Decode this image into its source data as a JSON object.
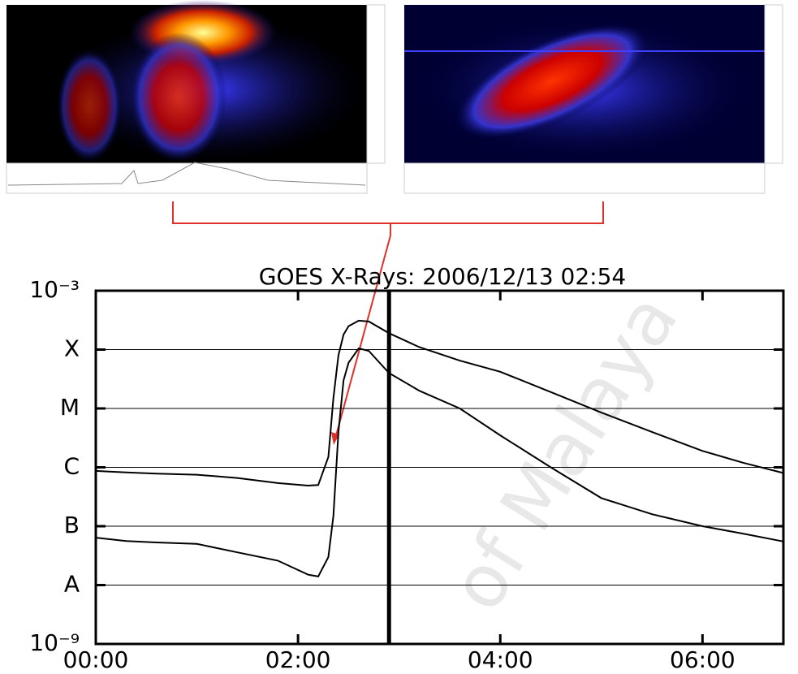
{
  "chart_data": {
    "type": "line",
    "title": "GOES X-Rays: 2006/12/13 02:54",
    "watermark": "of Malaya",
    "x": [
      0,
      0.3,
      0.6,
      1.0,
      1.4,
      1.8,
      2.1,
      2.2,
      2.3,
      2.35,
      2.4,
      2.45,
      2.5,
      2.6,
      2.7,
      2.9,
      3.2,
      3.6,
      4.0,
      4.5,
      5.0,
      5.5,
      6.0,
      6.4,
      6.8
    ],
    "series": [
      {
        "color": "#000000",
        "values": [
          8.7e-07,
          8.2e-07,
          7.8e-07,
          7.5e-07,
          6.6e-07,
          5.4e-07,
          4.9e-07,
          5e-07,
          1.5e-06,
          1.5e-05,
          8e-05,
          0.00018,
          0.00025,
          0.00031,
          0.0003,
          0.00019,
          0.00011,
          6.5e-05,
          4.2e-05,
          1.9e-05,
          8.5e-06,
          4e-06,
          1.9e-06,
          1.2e-06,
          8e-07
        ]
      },
      {
        "color": "#000000",
        "values": [
          6.4e-08,
          5.6e-08,
          5.3e-08,
          5e-08,
          3.6e-08,
          2.6e-08,
          1.5e-08,
          1.4e-08,
          3e-08,
          1.5e-07,
          4e-06,
          3e-05,
          6e-05,
          0.000105,
          9.5e-05,
          4e-05,
          2e-05,
          1e-05,
          3.5e-06,
          1e-06,
          3e-07,
          1.6e-07,
          1e-07,
          7.5e-08,
          5.5e-08
        ]
      }
    ],
    "log_y": true,
    "xlim": [
      0,
      6.8
    ],
    "xticks": [
      {
        "value": 0,
        "label": "00:00"
      },
      {
        "value": 2,
        "label": "02:00"
      },
      {
        "value": 4,
        "label": "04:00"
      },
      {
        "value": 6,
        "label": "06:00"
      }
    ],
    "ylim": [
      1e-09,
      0.001
    ],
    "yticks": [
      {
        "value": 1e-09,
        "label": "10⁻⁹"
      },
      {
        "value": 1e-08,
        "label": "A"
      },
      {
        "value": 1e-07,
        "label": "B"
      },
      {
        "value": 1e-06,
        "label": "C"
      },
      {
        "value": 1e-05,
        "label": "M"
      },
      {
        "value": 0.0001,
        "label": "X"
      },
      {
        "value": 0.001,
        "label": "10⁻³"
      }
    ],
    "grid": true,
    "vline": 2.9
  }
}
